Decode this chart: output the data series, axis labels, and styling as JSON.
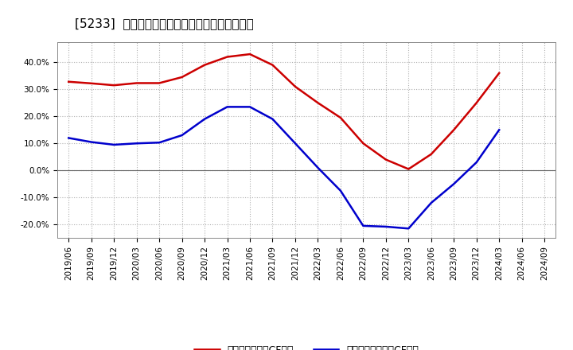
{
  "title": "[5233]  有利子負債キャッシュフロー比率の推移",
  "legend_red": "有利子負債営業CF比率",
  "legend_blue": "有利子負債フリーCF比率",
  "xlabels": [
    "2019/06",
    "2019/09",
    "2019/12",
    "2020/03",
    "2020/06",
    "2020/09",
    "2020/12",
    "2021/03",
    "2021/06",
    "2021/09",
    "2021/12",
    "2022/03",
    "2022/06",
    "2022/09",
    "2022/12",
    "2023/03",
    "2023/06",
    "2023/09",
    "2023/12",
    "2024/03",
    "2024/06",
    "2024/09"
  ],
  "red_values": [
    0.328,
    0.322,
    0.315,
    0.323,
    0.323,
    0.345,
    0.39,
    0.42,
    0.43,
    0.39,
    0.31,
    0.25,
    0.195,
    0.1,
    0.04,
    0.005,
    0.06,
    0.15,
    0.25,
    0.36,
    null,
    null
  ],
  "blue_values": [
    0.12,
    0.105,
    0.095,
    0.1,
    0.103,
    0.13,
    0.19,
    0.235,
    0.235,
    0.19,
    0.1,
    0.01,
    -0.075,
    -0.205,
    -0.208,
    -0.215,
    -0.12,
    -0.05,
    0.03,
    0.15,
    null,
    null
  ],
  "ylim": [
    -0.25,
    0.475
  ],
  "ytick_vals": [
    -0.2,
    -0.1,
    0.0,
    0.1,
    0.2,
    0.3,
    0.4
  ],
  "ytick_labels": [
    "-20.0%",
    "-10.0%",
    "0.0%",
    "10.0%",
    "20.0%",
    "30.0%",
    "40.0%"
  ],
  "red_color": "#cc0000",
  "blue_color": "#0000cc",
  "background_color": "#ffffff",
  "grid_color": "#b0b0b0",
  "title_fontsize": 11,
  "legend_fontsize": 9,
  "tick_fontsize": 7.5
}
